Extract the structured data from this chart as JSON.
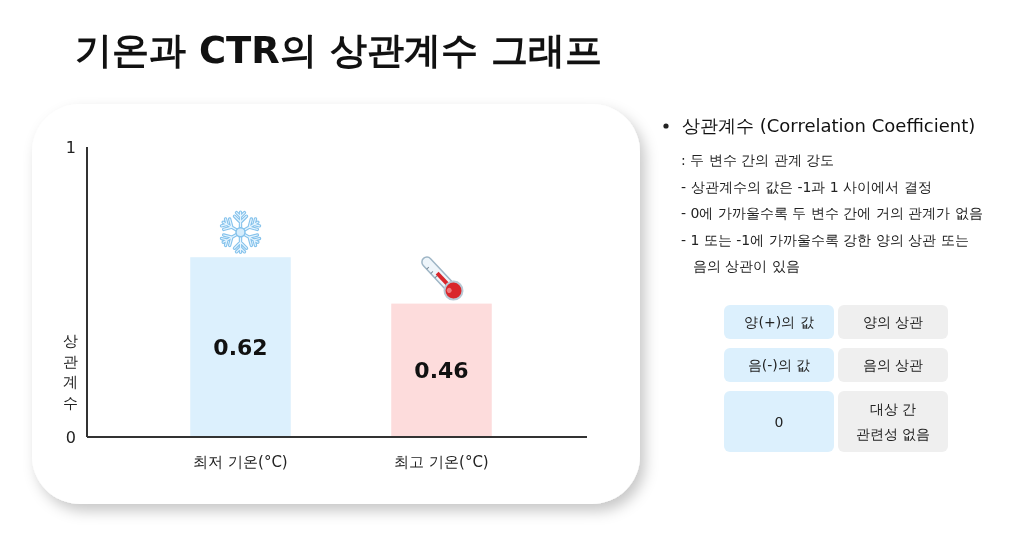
{
  "chart_data": [
    {
      "type": "bar",
      "title": "기온과 CTR의 상관계수 그래프",
      "ylabel": "상관계수",
      "categories": [
        "최저 기온(°C)",
        "최고 기온(°C)"
      ],
      "values": [
        0.62,
        0.46
      ],
      "colors": [
        "#dcf0fd",
        "#fddcdc"
      ],
      "ylim": [
        0,
        1
      ],
      "yticks": [
        0,
        1
      ],
      "data_labels": true
    },
    {
      "type": "other",
      "title": "상관계수 (Correlation Coefficient)",
      "annotations": [
        ": 두 변수 간의 관계 강도",
        "- 상관계수의 값은 -1과 1 사이에서 결정",
        "- 0에 가까울수록 두 변수 간에 거의 관계가 없음",
        "- 1 또는 -1에 가까울수록 강한 양의 상관 또는 음의 상관이 있음"
      ]
    },
    {
      "type": "other",
      "annotations": [
        "양(+)의 값",
        "양의 상관",
        "음(-)의 값",
        "음의 상관",
        "0",
        "대상 간 관련성 없음"
      ]
    }
  ]
}
